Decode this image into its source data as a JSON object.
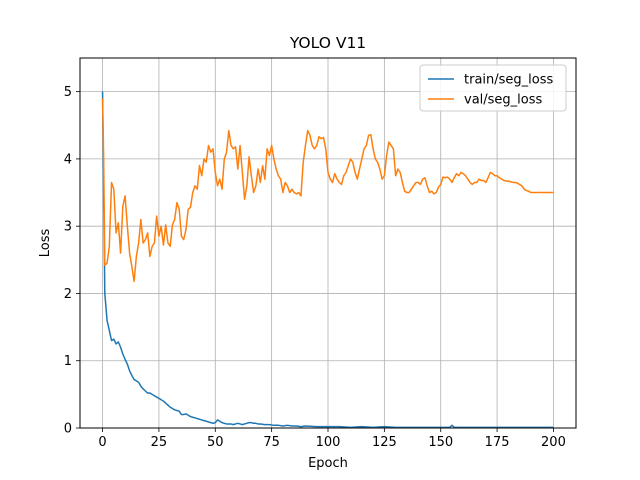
{
  "chart_data": {
    "type": "line",
    "title": "YOLO V11",
    "xlabel": "Epoch",
    "ylabel": "Loss",
    "xlim": [
      -10,
      210
    ],
    "ylim": [
      0,
      5.5
    ],
    "xticks": [
      0,
      25,
      50,
      75,
      100,
      125,
      150,
      175,
      200
    ],
    "yticks": [
      0,
      1,
      2,
      3,
      4,
      5
    ],
    "grid": true,
    "legend_position": "top-right",
    "series": [
      {
        "name": "train/seg_loss",
        "color": "#1f77b4",
        "points": [
          [
            0,
            5.0
          ],
          [
            0.5,
            3.5
          ],
          [
            1,
            2.0
          ],
          [
            2,
            1.6
          ],
          [
            3,
            1.45
          ],
          [
            4,
            1.3
          ],
          [
            5,
            1.32
          ],
          [
            6,
            1.25
          ],
          [
            7,
            1.28
          ],
          [
            8,
            1.2
          ],
          [
            9,
            1.1
          ],
          [
            10,
            1.02
          ],
          [
            11,
            0.95
          ],
          [
            12,
            0.85
          ],
          [
            13,
            0.78
          ],
          [
            14,
            0.72
          ],
          [
            15,
            0.7
          ],
          [
            16,
            0.68
          ],
          [
            17,
            0.62
          ],
          [
            18,
            0.58
          ],
          [
            19,
            0.55
          ],
          [
            20,
            0.52
          ],
          [
            21,
            0.52
          ],
          [
            22,
            0.5
          ],
          [
            23,
            0.48
          ],
          [
            24,
            0.46
          ],
          [
            25,
            0.44
          ],
          [
            26,
            0.42
          ],
          [
            27,
            0.4
          ],
          [
            28,
            0.37
          ],
          [
            29,
            0.34
          ],
          [
            30,
            0.31
          ],
          [
            31,
            0.29
          ],
          [
            32,
            0.27
          ],
          [
            33,
            0.26
          ],
          [
            34,
            0.25
          ],
          [
            35,
            0.2
          ],
          [
            36,
            0.2
          ],
          [
            37,
            0.21
          ],
          [
            38,
            0.19
          ],
          [
            39,
            0.17
          ],
          [
            40,
            0.16
          ],
          [
            41,
            0.15
          ],
          [
            42,
            0.14
          ],
          [
            43,
            0.13
          ],
          [
            44,
            0.12
          ],
          [
            45,
            0.11
          ],
          [
            46,
            0.1
          ],
          [
            47,
            0.09
          ],
          [
            48,
            0.08
          ],
          [
            49,
            0.07
          ],
          [
            50,
            0.08
          ],
          [
            51,
            0.12
          ],
          [
            52,
            0.1
          ],
          [
            53,
            0.08
          ],
          [
            54,
            0.07
          ],
          [
            55,
            0.06
          ],
          [
            56,
            0.06
          ],
          [
            57,
            0.06
          ],
          [
            58,
            0.05
          ],
          [
            59,
            0.06
          ],
          [
            60,
            0.07
          ],
          [
            61,
            0.06
          ],
          [
            62,
            0.05
          ],
          [
            63,
            0.06
          ],
          [
            64,
            0.07
          ],
          [
            65,
            0.08
          ],
          [
            66,
            0.08
          ],
          [
            67,
            0.07
          ],
          [
            68,
            0.07
          ],
          [
            69,
            0.06
          ],
          [
            70,
            0.06
          ],
          [
            72,
            0.05
          ],
          [
            74,
            0.05
          ],
          [
            76,
            0.04
          ],
          [
            78,
            0.04
          ],
          [
            80,
            0.03
          ],
          [
            82,
            0.04
          ],
          [
            84,
            0.03
          ],
          [
            86,
            0.03
          ],
          [
            88,
            0.02
          ],
          [
            90,
            0.03
          ],
          [
            95,
            0.02
          ],
          [
            100,
            0.02
          ],
          [
            105,
            0.02
          ],
          [
            110,
            0.01
          ],
          [
            115,
            0.02
          ],
          [
            120,
            0.01
          ],
          [
            125,
            0.02
          ],
          [
            130,
            0.01
          ],
          [
            135,
            0.01
          ],
          [
            140,
            0.01
          ],
          [
            145,
            0.01
          ],
          [
            150,
            0.01
          ],
          [
            154,
            0.01
          ],
          [
            155,
            0.04
          ],
          [
            156,
            0.01
          ],
          [
            160,
            0.01
          ],
          [
            165,
            0.01
          ],
          [
            170,
            0.01
          ],
          [
            175,
            0.01
          ],
          [
            180,
            0.01
          ],
          [
            185,
            0.01
          ],
          [
            190,
            0.01
          ],
          [
            195,
            0.01
          ],
          [
            200,
            0.01
          ]
        ]
      },
      {
        "name": "val/seg_loss",
        "color": "#ff7f0e",
        "points": [
          [
            0,
            4.9
          ],
          [
            0.5,
            4.0
          ],
          [
            1,
            2.42
          ],
          [
            2,
            2.45
          ],
          [
            3,
            2.7
          ],
          [
            4,
            3.65
          ],
          [
            5,
            3.55
          ],
          [
            6,
            2.9
          ],
          [
            7,
            3.05
          ],
          [
            8,
            2.6
          ],
          [
            9,
            3.3
          ],
          [
            10,
            3.45
          ],
          [
            11,
            3.0
          ],
          [
            12,
            2.6
          ],
          [
            13,
            2.4
          ],
          [
            14,
            2.18
          ],
          [
            15,
            2.55
          ],
          [
            16,
            2.75
          ],
          [
            17,
            3.1
          ],
          [
            18,
            2.75
          ],
          [
            19,
            2.8
          ],
          [
            20,
            2.9
          ],
          [
            21,
            2.55
          ],
          [
            22,
            2.7
          ],
          [
            23,
            2.75
          ],
          [
            24,
            3.15
          ],
          [
            25,
            2.85
          ],
          [
            26,
            3.0
          ],
          [
            27,
            2.72
          ],
          [
            28,
            3.02
          ],
          [
            29,
            2.75
          ],
          [
            30,
            2.7
          ],
          [
            31,
            3.02
          ],
          [
            32,
            3.1
          ],
          [
            33,
            3.35
          ],
          [
            34,
            3.25
          ],
          [
            35,
            2.85
          ],
          [
            36,
            2.8
          ],
          [
            37,
            2.95
          ],
          [
            38,
            3.25
          ],
          [
            39,
            3.28
          ],
          [
            40,
            3.5
          ],
          [
            41,
            3.6
          ],
          [
            42,
            3.55
          ],
          [
            43,
            3.9
          ],
          [
            44,
            3.75
          ],
          [
            45,
            4.0
          ],
          [
            46,
            3.95
          ],
          [
            47,
            4.2
          ],
          [
            48,
            4.1
          ],
          [
            49,
            4.15
          ],
          [
            50,
            3.8
          ],
          [
            51,
            3.6
          ],
          [
            52,
            3.7
          ],
          [
            53,
            3.55
          ],
          [
            54,
            4.0
          ],
          [
            55,
            4.1
          ],
          [
            56,
            4.42
          ],
          [
            57,
            4.2
          ],
          [
            58,
            4.15
          ],
          [
            59,
            4.18
          ],
          [
            60,
            3.85
          ],
          [
            61,
            4.2
          ],
          [
            62,
            3.8
          ],
          [
            63,
            3.4
          ],
          [
            64,
            3.6
          ],
          [
            65,
            4.03
          ],
          [
            66,
            3.75
          ],
          [
            67,
            3.5
          ],
          [
            68,
            3.6
          ],
          [
            69,
            3.85
          ],
          [
            70,
            3.65
          ],
          [
            71,
            3.9
          ],
          [
            72,
            3.7
          ],
          [
            73,
            4.15
          ],
          [
            74,
            4.05
          ],
          [
            75,
            4.2
          ],
          [
            76,
            4.0
          ],
          [
            77,
            3.85
          ],
          [
            78,
            3.75
          ],
          [
            79,
            3.7
          ],
          [
            80,
            3.5
          ],
          [
            81,
            3.65
          ],
          [
            82,
            3.6
          ],
          [
            83,
            3.5
          ],
          [
            84,
            3.55
          ],
          [
            85,
            3.5
          ],
          [
            86,
            3.48
          ],
          [
            87,
            3.5
          ],
          [
            88,
            3.45
          ],
          [
            89,
            3.95
          ],
          [
            90,
            4.2
          ],
          [
            91,
            4.42
          ],
          [
            92,
            4.35
          ],
          [
            93,
            4.2
          ],
          [
            94,
            4.15
          ],
          [
            95,
            4.2
          ],
          [
            96,
            4.33
          ],
          [
            97,
            4.3
          ],
          [
            98,
            4.32
          ],
          [
            99,
            4.15
          ],
          [
            100,
            3.8
          ],
          [
            101,
            3.7
          ],
          [
            102,
            3.65
          ],
          [
            103,
            3.78
          ],
          [
            104,
            3.7
          ],
          [
            105,
            3.65
          ],
          [
            106,
            3.62
          ],
          [
            107,
            3.75
          ],
          [
            108,
            3.8
          ],
          [
            109,
            3.9
          ],
          [
            110,
            4.0
          ],
          [
            111,
            3.95
          ],
          [
            112,
            3.8
          ],
          [
            113,
            3.7
          ],
          [
            114,
            3.85
          ],
          [
            115,
            4.0
          ],
          [
            116,
            4.15
          ],
          [
            117,
            4.2
          ],
          [
            118,
            4.35
          ],
          [
            119,
            4.36
          ],
          [
            120,
            4.15
          ],
          [
            121,
            4.0
          ],
          [
            122,
            3.95
          ],
          [
            123,
            3.85
          ],
          [
            124,
            3.7
          ],
          [
            125,
            3.75
          ],
          [
            126,
            4.05
          ],
          [
            127,
            4.25
          ],
          [
            128,
            4.2
          ],
          [
            129,
            4.15
          ],
          [
            130,
            3.75
          ],
          [
            131,
            3.85
          ],
          [
            132,
            3.8
          ],
          [
            133,
            3.65
          ],
          [
            134,
            3.52
          ],
          [
            135,
            3.5
          ],
          [
            136,
            3.5
          ],
          [
            137,
            3.55
          ],
          [
            138,
            3.6
          ],
          [
            139,
            3.65
          ],
          [
            140,
            3.65
          ],
          [
            141,
            3.62
          ],
          [
            142,
            3.7
          ],
          [
            143,
            3.72
          ],
          [
            144,
            3.6
          ],
          [
            145,
            3.5
          ],
          [
            146,
            3.52
          ],
          [
            147,
            3.48
          ],
          [
            148,
            3.5
          ],
          [
            149,
            3.58
          ],
          [
            150,
            3.62
          ],
          [
            151,
            3.73
          ],
          [
            152,
            3.72
          ],
          [
            153,
            3.73
          ],
          [
            154,
            3.7
          ],
          [
            155,
            3.65
          ],
          [
            156,
            3.72
          ],
          [
            157,
            3.78
          ],
          [
            158,
            3.75
          ],
          [
            159,
            3.8
          ],
          [
            160,
            3.78
          ],
          [
            161,
            3.75
          ],
          [
            162,
            3.7
          ],
          [
            163,
            3.65
          ],
          [
            164,
            3.62
          ],
          [
            165,
            3.65
          ],
          [
            166,
            3.65
          ],
          [
            167,
            3.7
          ],
          [
            168,
            3.68
          ],
          [
            169,
            3.68
          ],
          [
            170,
            3.65
          ],
          [
            171,
            3.72
          ],
          [
            172,
            3.8
          ],
          [
            173,
            3.78
          ],
          [
            174,
            3.75
          ],
          [
            175,
            3.75
          ],
          [
            176,
            3.72
          ],
          [
            177,
            3.7
          ],
          [
            178,
            3.68
          ],
          [
            179,
            3.67
          ],
          [
            180,
            3.67
          ],
          [
            181,
            3.66
          ],
          [
            182,
            3.65
          ],
          [
            183,
            3.65
          ],
          [
            184,
            3.64
          ],
          [
            185,
            3.62
          ],
          [
            186,
            3.6
          ],
          [
            187,
            3.55
          ],
          [
            188,
            3.53
          ],
          [
            189,
            3.52
          ],
          [
            190,
            3.5
          ],
          [
            191,
            3.5
          ],
          [
            192,
            3.5
          ],
          [
            193,
            3.5
          ],
          [
            194,
            3.5
          ],
          [
            195,
            3.5
          ],
          [
            196,
            3.5
          ],
          [
            197,
            3.5
          ],
          [
            198,
            3.5
          ],
          [
            199,
            3.5
          ],
          [
            200,
            3.5
          ]
        ]
      }
    ]
  }
}
